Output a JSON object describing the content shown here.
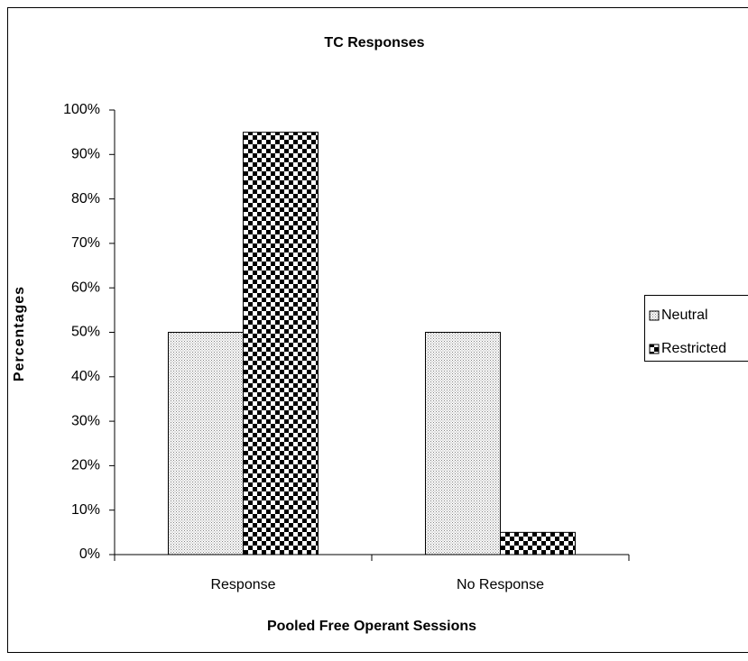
{
  "chart_data": {
    "type": "bar",
    "title": "TC Responses",
    "x_label": "Pooled Free Operant Sessions",
    "y_label": "Percentages",
    "categories": [
      "Response",
      "No Response"
    ],
    "series": [
      {
        "name": "Neutral",
        "color": "#808080",
        "values": [
          50,
          50
        ]
      },
      {
        "name": "Restricted",
        "color": "#000000",
        "values": [
          95,
          5
        ]
      }
    ],
    "ylim": [
      0,
      100
    ],
    "yticks": [
      {
        "value": 0,
        "label": "0%"
      },
      {
        "value": 10,
        "label": "10%"
      },
      {
        "value": 20,
        "label": "20%"
      },
      {
        "value": 30,
        "label": "30%"
      },
      {
        "value": 40,
        "label": "40%"
      },
      {
        "value": 50,
        "label": "50%"
      },
      {
        "value": 60,
        "label": "60%"
      },
      {
        "value": 70,
        "label": "70%"
      },
      {
        "value": 80,
        "label": "80%"
      },
      {
        "value": 90,
        "label": "90%"
      },
      {
        "value": 100,
        "label": "100%"
      }
    ],
    "legend": "right"
  }
}
